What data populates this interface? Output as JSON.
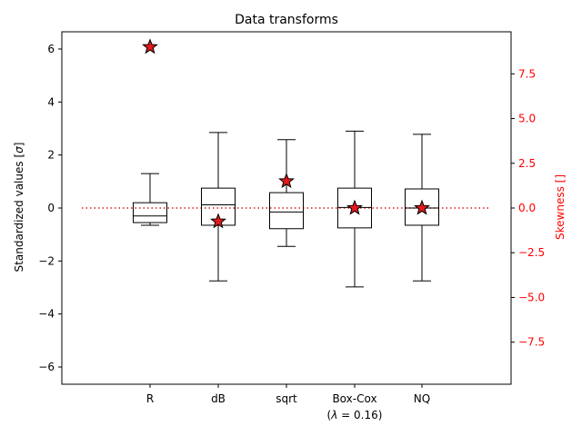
{
  "chart_data": {
    "type": "box",
    "title": "Data transforms",
    "ylabel_left": "Standardized values [$\\sigma$]",
    "ylabel_left_parts": {
      "text": "Standardized values [",
      "symbol": "σ",
      "close": "]"
    },
    "ylabel_right": "Skewness []",
    "ylim_left": [
      -6.65,
      6.65
    ],
    "ylim_right": [
      -9.85,
      9.85
    ],
    "left_ticks": [
      -6,
      -4,
      -2,
      0,
      2,
      4,
      6
    ],
    "right_ticks": [
      -7.5,
      -5.0,
      -2.5,
      0.0,
      2.5,
      5.0,
      7.5
    ],
    "right_tick_labels": [
      "−7.5",
      "−5.0",
      "−2.5",
      "0.0",
      "2.5",
      "5.0",
      "7.5"
    ],
    "left_tick_labels": [
      "−6",
      "−4",
      "−2",
      "0",
      "2",
      "4",
      "6"
    ],
    "categories": [
      "R",
      "dB",
      "sqrt",
      "Box-Cox",
      "NQ"
    ],
    "category_sublabels": [
      "",
      "",
      "",
      "(λ = 0.16)",
      ""
    ],
    "boxes": [
      {
        "name": "R",
        "whisker_low": -0.65,
        "q1": -0.55,
        "median": -0.3,
        "q3": 0.2,
        "whisker_high": 1.3
      },
      {
        "name": "dB",
        "whisker_low": -2.75,
        "q1": -0.65,
        "median": 0.12,
        "q3": 0.75,
        "whisker_high": 2.85
      },
      {
        "name": "sqrt",
        "whisker_low": -1.45,
        "q1": -0.78,
        "median": -0.15,
        "q3": 0.58,
        "whisker_high": 2.58
      },
      {
        "name": "Box-Cox",
        "whisker_low": -2.98,
        "q1": -0.75,
        "median": 0.02,
        "q3": 0.75,
        "whisker_high": 2.9
      },
      {
        "name": "NQ",
        "whisker_low": -2.75,
        "q1": -0.65,
        "median": 0.0,
        "q3": 0.72,
        "whisker_high": 2.78
      }
    ],
    "skewness": [
      9.0,
      -0.75,
      1.5,
      0.0,
      0.0
    ],
    "reference_line": 0,
    "colors": {
      "box": "#000000",
      "skew": "#e31a1c",
      "right_axis": "#ff0000"
    },
    "grid": false
  }
}
